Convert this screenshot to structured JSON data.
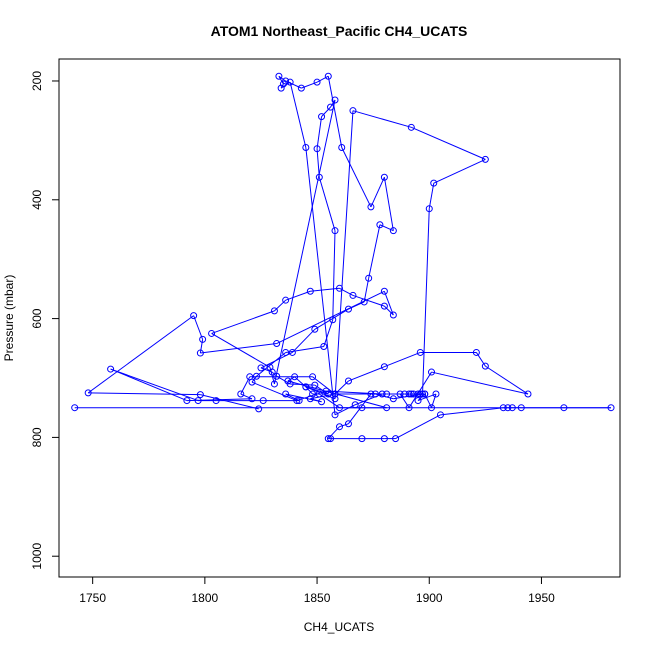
{
  "chart_data": {
    "type": "line",
    "title": "ATOM1 Northeast_Pacific CH4_UCATS",
    "xlabel": "CH4_UCATS",
    "ylabel": "Pressure (mbar)",
    "xlim": [
      1735,
      1985
    ],
    "ylim": [
      1035,
      163
    ],
    "y_inverted": true,
    "x_ticks": [
      1750,
      1800,
      1850,
      1900,
      1950
    ],
    "y_ticks": [
      200,
      400,
      600,
      800,
      1000
    ],
    "grid": false,
    "legend": "none",
    "series_color": "#0000ff",
    "marker": "open-circle",
    "x": [
      1742,
      1981,
      1960,
      1941,
      1937,
      1935,
      1933,
      1905,
      1885,
      1880,
      1870,
      1856,
      1855,
      1860,
      1864,
      1874,
      1881,
      1889,
      1896,
      1893,
      1891,
      1898,
      1895,
      1903,
      1901,
      1898,
      1895,
      1892,
      1887,
      1891,
      1901,
      1944,
      1925,
      1921,
      1896,
      1880,
      1864,
      1858,
      1847,
      1852,
      1836,
      1842,
      1826,
      1805,
      1797,
      1758,
      1792,
      1821,
      1816,
      1820,
      1848,
      1858,
      1876,
      1884,
      1897,
      1900,
      1902,
      1925,
      1892,
      1866,
      1858,
      1845,
      1848,
      1851,
      1860,
      1870,
      1881,
      1837,
      1840,
      1845,
      1855,
      1849,
      1838,
      1832,
      1830,
      1825,
      1839,
      1849,
      1864,
      1871,
      1873,
      1878,
      1884,
      1880,
      1874,
      1861,
      1855,
      1850,
      1843,
      1836,
      1833,
      1835,
      1834,
      1838,
      1845,
      1858,
      1867,
      1879,
      1854,
      1841,
      1821,
      1823,
      1836,
      1853,
      1857,
      1858,
      1851,
      1850,
      1852,
      1856,
      1858,
      1831,
      1829,
      1803,
      1831,
      1836,
      1847,
      1860,
      1866,
      1880,
      1884,
      1880,
      1832,
      1798,
      1799,
      1795,
      1748,
      1798,
      1824
    ],
    "y": [
      750,
      750,
      750,
      750,
      750,
      750,
      750,
      762,
      802,
      802,
      802,
      802,
      802,
      782,
      777,
      727,
      727,
      727,
      727,
      727,
      727,
      727,
      738,
      727,
      750,
      727,
      727,
      727,
      727,
      750,
      690,
      727,
      680,
      657,
      657,
      681,
      705,
      727,
      735,
      740,
      727,
      738,
      738,
      738,
      738,
      685,
      738,
      735,
      727,
      698,
      698,
      727,
      727,
      735,
      727,
      415,
      372,
      332,
      278,
      250,
      735,
      715,
      727,
      727,
      750,
      750,
      750,
      705,
      698,
      715,
      727,
      712,
      710,
      697,
      690,
      683,
      657,
      618,
      584,
      572,
      532,
      442,
      452,
      362,
      412,
      312,
      192,
      202,
      212,
      200,
      192,
      205,
      212,
      202,
      312,
      762,
      745,
      727,
      722,
      738,
      707,
      697,
      657,
      647,
      602,
      452,
      362,
      314,
      260,
      244,
      232,
      710,
      682,
      625,
      587,
      569,
      554,
      549,
      561,
      579,
      594,
      554,
      642,
      658,
      635,
      595,
      725,
      728,
      752
    ],
    "note": ""
  }
}
